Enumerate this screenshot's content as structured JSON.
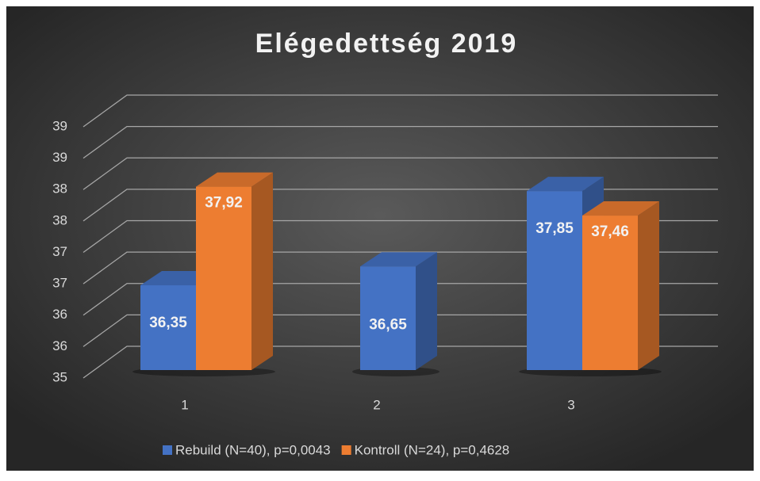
{
  "chart_data": {
    "type": "bar3d",
    "title": "Elégedettség 2019",
    "categories": [
      "1",
      "2",
      "3"
    ],
    "series": [
      {
        "name": "Rebuild (N=40), p=0,0043",
        "color": "#4472c4",
        "values": [
          36.35,
          36.65,
          37.85
        ],
        "value_labels": [
          "36,35",
          "36,65",
          "37,85"
        ]
      },
      {
        "name": "Kontroll (N=24), p=0,4628",
        "color": "#ed7d31",
        "values": [
          37.92,
          null,
          37.46
        ],
        "value_labels": [
          "37,92",
          null,
          "37,46"
        ]
      }
    ],
    "ylim": [
      35,
      39
    ],
    "yticks": [
      35,
      {
        "value": 35.5,
        "label": "36"
      },
      36,
      {
        "value": 36.5,
        "label": "37"
      },
      37,
      {
        "value": 37.5,
        "label": "38"
      },
      38,
      {
        "value": 38.5,
        "label": "39"
      },
      39
    ],
    "grid": true,
    "legend": "bottom"
  }
}
